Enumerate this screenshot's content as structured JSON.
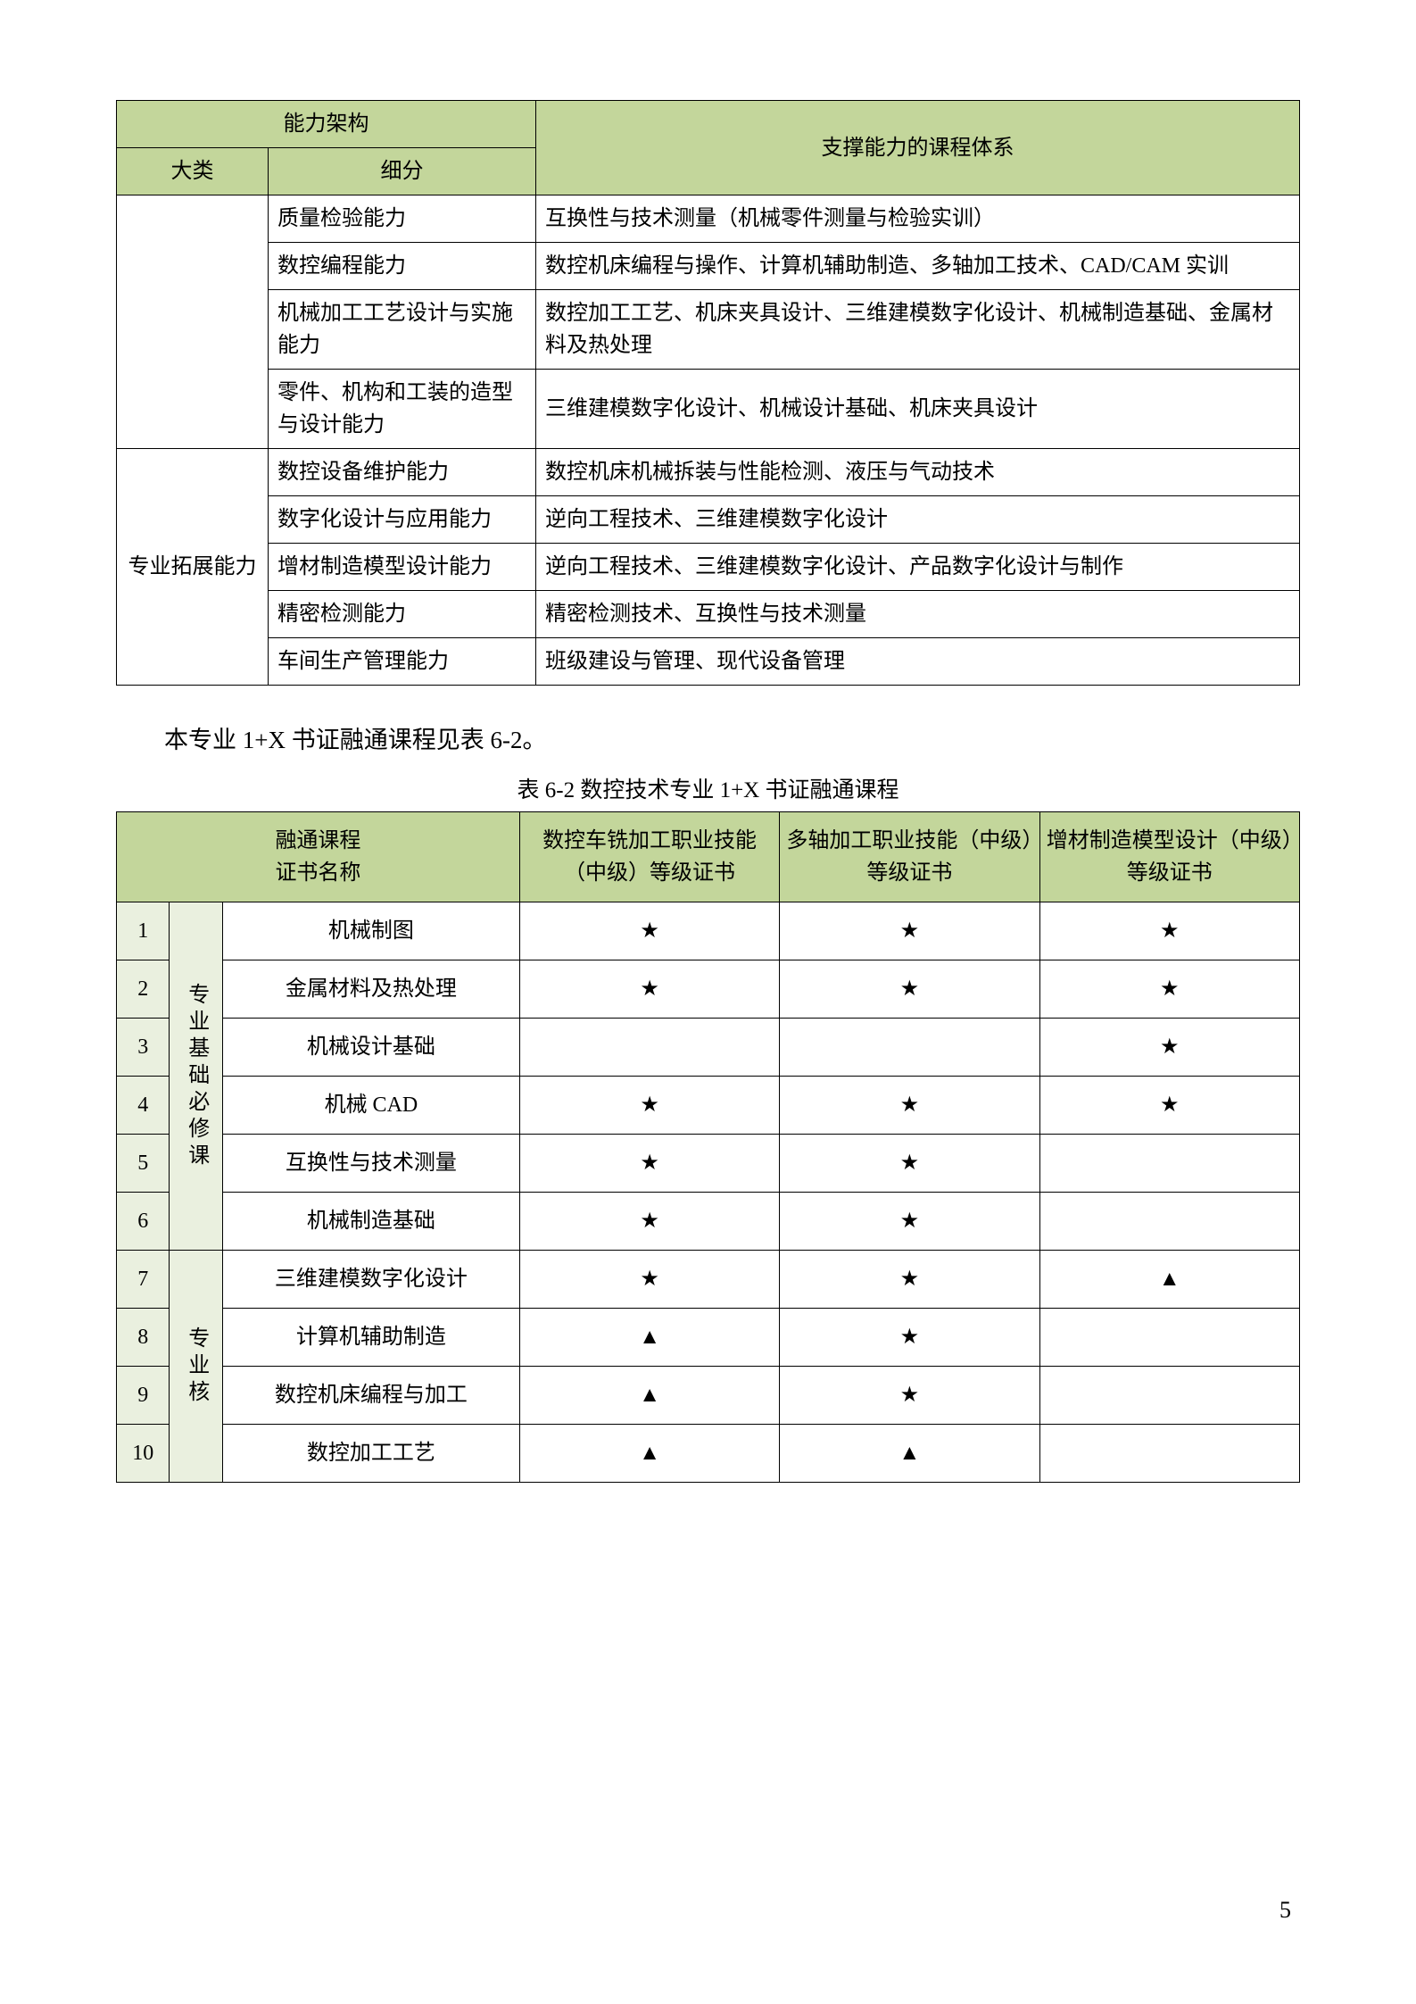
{
  "table1": {
    "header": {
      "h1": "能力架构",
      "h1a": "大类",
      "h1b": "细分",
      "h2": "支撑能力的课程体系"
    },
    "group1_rows": [
      {
        "ability": "质量检验能力",
        "courses": "互换性与技术测量（机械零件测量与检验实训）"
      },
      {
        "ability": "数控编程能力",
        "courses": "数控机床编程与操作、计算机辅助制造、多轴加工技术、CAD/CAM 实训"
      },
      {
        "ability": "机械加工工艺设计与实施能力",
        "courses": "数控加工工艺、机床夹具设计、三维建模数字化设计、机械制造基础、金属材料及热处理"
      },
      {
        "ability": "零件、机构和工装的造型与设计能力",
        "courses": "三维建模数字化设计、机械设计基础、机床夹具设计"
      }
    ],
    "group2_label": "专业拓展能力",
    "group2_rows": [
      {
        "ability": "数控设备维护能力",
        "courses": "数控机床机械拆装与性能检测、液压与气动技术"
      },
      {
        "ability": "数字化设计与应用能力",
        "courses": "逆向工程技术、三维建模数字化设计"
      },
      {
        "ability": "增材制造模型设计能力",
        "courses": "逆向工程技术、三维建模数字化设计、产品数字化设计与制作"
      },
      {
        "ability": "精密检测能力",
        "courses": "精密检测技术、互换性与技术测量"
      },
      {
        "ability": "车间生产管理能力",
        "courses": "班级建设与管理、现代设备管理"
      }
    ]
  },
  "intro_text": "本专业 1+X 书证融通课程见表 6-2。",
  "table2_caption": "表 6-2   数控技术专业 1+X 书证融通课程",
  "table2": {
    "header": {
      "h1": "融通课程\n证书名称",
      "h2": "数控车铣加工职业技能（中级）等级证书",
      "h3": "多轴加工职业技能（中级）等级证书",
      "h4": "增材制造模型设计（中级）等级证书"
    },
    "group1_label": "专业基础必修课",
    "group2_label": "专业核",
    "rows": [
      {
        "n": "1",
        "course": "机械制图",
        "c1": "★",
        "c2": "★",
        "c3": "★"
      },
      {
        "n": "2",
        "course": "金属材料及热处理",
        "c1": "★",
        "c2": "★",
        "c3": "★"
      },
      {
        "n": "3",
        "course": "机械设计基础",
        "c1": "",
        "c2": "",
        "c3": "★"
      },
      {
        "n": "4",
        "course": "机械 CAD",
        "c1": "★",
        "c2": "★",
        "c3": "★"
      },
      {
        "n": "5",
        "course": "互换性与技术测量",
        "c1": "★",
        "c2": "★",
        "c3": ""
      },
      {
        "n": "6",
        "course": "机械制造基础",
        "c1": "★",
        "c2": "★",
        "c3": ""
      },
      {
        "n": "7",
        "course": "三维建模数字化设计",
        "c1": "★",
        "c2": "★",
        "c3": "▲"
      },
      {
        "n": "8",
        "course": "计算机辅助制造",
        "c1": "▲",
        "c2": "★",
        "c3": ""
      },
      {
        "n": "9",
        "course": "数控机床编程与加工",
        "c1": "▲",
        "c2": "★",
        "c3": ""
      },
      {
        "n": "10",
        "course": "数控加工工艺",
        "c1": "▲",
        "c2": "▲",
        "c3": ""
      }
    ]
  },
  "page_number": "5"
}
